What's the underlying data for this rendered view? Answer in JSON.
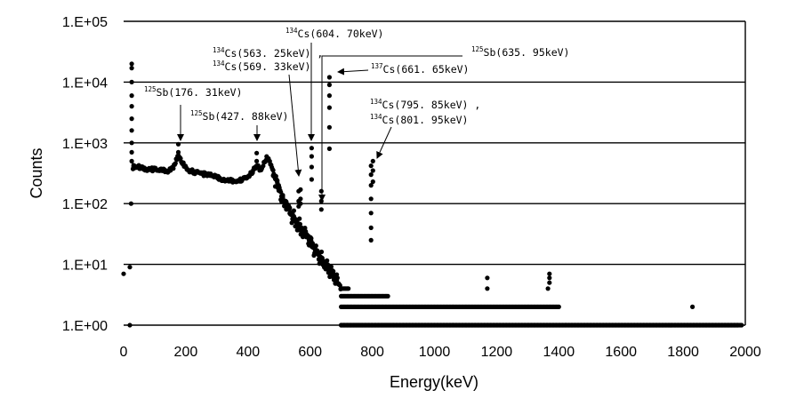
{
  "chart_data": {
    "type": "scatter",
    "title": "",
    "xlabel": "Energy(keV)",
    "ylabel": "Counts",
    "xlim": [
      0,
      2000
    ],
    "ylim": [
      1,
      100000
    ],
    "y_scale": "log",
    "grid": "horizontal",
    "legend": "none",
    "marker_color": "#000000",
    "x_ticks": [
      "0",
      "200",
      "400",
      "600",
      "800",
      "1000",
      "1200",
      "1400",
      "1600",
      "1800",
      "2000"
    ],
    "y_ticks": [
      "1.E+00",
      "1.E+01",
      "1.E+02",
      "1.E+03",
      "1.E+04",
      "1.E+05"
    ],
    "continuum": [
      [
        30,
        400
      ],
      [
        40,
        420
      ],
      [
        60,
        380
      ],
      [
        80,
        360
      ],
      [
        100,
        370
      ],
      [
        120,
        360
      ],
      [
        140,
        340
      ],
      [
        160,
        380
      ],
      [
        176,
        650
      ],
      [
        190,
        460
      ],
      [
        210,
        350
      ],
      [
        240,
        320
      ],
      [
        280,
        290
      ],
      [
        320,
        250
      ],
      [
        360,
        230
      ],
      [
        400,
        270
      ],
      [
        428,
        420
      ],
      [
        440,
        360
      ],
      [
        460,
        580
      ],
      [
        470,
        500
      ],
      [
        490,
        250
      ],
      [
        510,
        130
      ],
      [
        530,
        90
      ],
      [
        550,
        55
      ],
      [
        570,
        40
      ],
      [
        590,
        30
      ],
      [
        610,
        20
      ],
      [
        630,
        14
      ],
      [
        650,
        10
      ],
      [
        670,
        7
      ],
      [
        690,
        5
      ],
      [
        700,
        4
      ],
      [
        750,
        3
      ],
      [
        800,
        3
      ],
      [
        850,
        2.5
      ],
      [
        900,
        2
      ],
      [
        1000,
        2
      ],
      [
        1100,
        2
      ],
      [
        1200,
        2
      ],
      [
        1300,
        1.5
      ],
      [
        1400,
        1.5
      ],
      [
        1500,
        1.2
      ],
      [
        1600,
        1
      ],
      [
        1700,
        1
      ],
      [
        1800,
        1
      ],
      [
        1900,
        1
      ],
      [
        1980,
        1
      ]
    ],
    "peaks": [
      {
        "x": 26,
        "counts": [
          20000,
          17000,
          10000,
          6000,
          4000,
          2500,
          1600,
          1000,
          700,
          500
        ]
      },
      {
        "x": 176,
        "counts": [
          950,
          700,
          550
        ]
      },
      {
        "x": 428,
        "counts": [
          680,
          500,
          420
        ]
      },
      {
        "x": 563,
        "counts": [
          160,
          110,
          90
        ]
      },
      {
        "x": 569,
        "counts": [
          170,
          120,
          100
        ]
      },
      {
        "x": 605,
        "counts": [
          820,
          600,
          400,
          250
        ]
      },
      {
        "x": 636,
        "counts": [
          160,
          110,
          80
        ]
      },
      {
        "x": 662,
        "counts": [
          12000,
          9000,
          6000,
          3800,
          1800,
          800
        ]
      },
      {
        "x": 796,
        "counts": [
          420,
          300,
          200,
          120,
          70,
          40,
          25
        ]
      },
      {
        "x": 802,
        "counts": [
          500,
          350,
          230
        ]
      }
    ],
    "sparse_points": [
      [
        0,
        7
      ],
      [
        20,
        9
      ],
      [
        20,
        1
      ],
      [
        24,
        100
      ],
      [
        32,
        400
      ],
      [
        1170,
        6
      ],
      [
        1170,
        4
      ],
      [
        1370,
        7
      ],
      [
        1370,
        6
      ],
      [
        1370,
        5
      ],
      [
        1365,
        4
      ],
      [
        1830,
        2
      ],
      [
        1760,
        1
      ]
    ],
    "annotations": [
      {
        "sup": "125",
        "nuclide": "Sb",
        "energy": "(176. 31keV)"
      },
      {
        "sup": "125",
        "nuclide": "Sb",
        "energy": "(427. 88keV)"
      },
      {
        "sup": "134",
        "nuclide": "Cs",
        "energy": "(563. 25keV) ,"
      },
      {
        "sup": "134",
        "nuclide": "Cs",
        "energy": "(569. 33keV)"
      },
      {
        "sup": "134",
        "nuclide": "Cs",
        "energy": "(604. 70keV)"
      },
      {
        "sup": "125",
        "nuclide": "Sb",
        "energy": "(635. 95keV)"
      },
      {
        "sup": "137",
        "nuclide": "Cs",
        "energy": "(661. 65keV)"
      },
      {
        "sup": "134",
        "nuclide": "Cs",
        "energy": "(795. 85keV) ,"
      },
      {
        "sup": "134",
        "nuclide": "Cs",
        "energy": "(801. 95keV)"
      }
    ]
  }
}
